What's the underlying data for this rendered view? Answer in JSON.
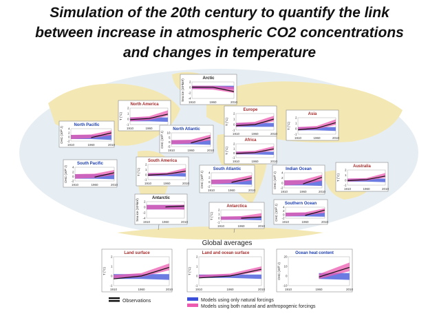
{
  "slide": {
    "title_lines": [
      "Simulation of the 20th century to quantify the link",
      "between increase in atmospheric CO2 concentrations",
      "and changes in temperature"
    ]
  },
  "figure": {
    "global_heading": "Global averages",
    "legend": {
      "observations": "Observations",
      "natural": "Models using only natural forcings",
      "both": "Models using both natural and anthropogenic forcings"
    },
    "colors": {
      "natural": "#3b4fd8",
      "both": "#ec5bb0",
      "observations": "#111111",
      "map": "#f3e7b4",
      "ocean": "#e6eef4"
    }
  },
  "chart_data": [
    {
      "type": "area",
      "title": "Arctic",
      "ylabel": "Sea ice (10⁶km²)",
      "x": [
        1910,
        1960,
        2010
      ],
      "ticks": [
        "2",
        "0",
        "-2",
        "-4"
      ],
      "observations": [
        0.1,
        0.05,
        -1.5
      ],
      "natural": [
        [
          0.6,
          0.6,
          0.6
        ],
        [
          -0.6,
          -0.6,
          -0.6
        ]
      ],
      "both": [
        [
          0.6,
          0.6,
          0.2
        ],
        [
          -0.6,
          -0.8,
          -2.0
        ]
      ],
      "ylim": [
        -4,
        2
      ]
    },
    {
      "type": "area",
      "title": "North America",
      "ylabel": "T (°C)",
      "x": [
        1910,
        1960,
        2010
      ],
      "ticks": [
        "2",
        "1",
        "0",
        "-1"
      ],
      "observations": [
        -0.1,
        0.1,
        0.9
      ],
      "natural": [
        [
          0.3,
          0.3,
          0.3
        ],
        [
          -0.4,
          -0.4,
          -0.5
        ]
      ],
      "both": [
        [
          0.3,
          0.5,
          1.6
        ],
        [
          -0.4,
          -0.2,
          0.6
        ]
      ],
      "ylim": [
        -1,
        2
      ]
    },
    {
      "type": "area",
      "title": "Europe",
      "ylabel": "T (°C)",
      "x": [
        1910,
        1960,
        2010
      ],
      "ticks": [
        "2",
        "1",
        "0",
        "-1"
      ],
      "observations": [
        -0.2,
        0.0,
        1.0
      ],
      "natural": [
        [
          0.3,
          0.3,
          0.3
        ],
        [
          -0.4,
          -0.4,
          -0.4
        ]
      ],
      "both": [
        [
          0.3,
          0.5,
          1.6
        ],
        [
          -0.4,
          -0.1,
          0.6
        ]
      ],
      "ylim": [
        -1,
        2
      ]
    },
    {
      "type": "area",
      "title": "Asia",
      "ylabel": "T (°C)",
      "x": [
        1910,
        1960,
        2010
      ],
      "ticks": [
        "2",
        "1",
        "0",
        "-1"
      ],
      "observations": [
        -0.2,
        0.1,
        1.1
      ],
      "natural": [
        [
          0.3,
          0.3,
          0.3
        ],
        [
          -0.3,
          -0.3,
          -0.4
        ]
      ],
      "both": [
        [
          0.3,
          0.5,
          1.7
        ],
        [
          -0.3,
          -0.1,
          0.7
        ]
      ],
      "ylim": [
        -1,
        2
      ]
    },
    {
      "type": "area",
      "title": "North Pacific",
      "ylabel": "OHC (10²² J)",
      "x": [
        1910,
        1960,
        2010
      ],
      "ticks": [
        "4",
        "2",
        "0",
        "-2"
      ],
      "observations": [
        null,
        -0.3,
        2.0
      ],
      "natural": [
        [
          1.0,
          1.0,
          1.0
        ],
        [
          -1.0,
          -1.0,
          -1.4
        ]
      ],
      "both": [
        [
          1.0,
          1.2,
          3.2
        ],
        [
          -1.0,
          -0.6,
          0.8
        ]
      ],
      "ylim": [
        -2,
        4
      ]
    },
    {
      "type": "area",
      "title": "North Atlantic",
      "ylabel": "OHC (10²² J)",
      "x": [
        1910,
        1960,
        2010
      ],
      "ticks": [
        "10",
        "5",
        "0",
        "-5"
      ],
      "observations": [
        null,
        -1.0,
        5.0
      ],
      "natural": [
        [
          2.0,
          2.0,
          2.0
        ],
        [
          -2.5,
          -2.5,
          -3.0
        ]
      ],
      "both": [
        [
          2.0,
          2.5,
          8.0
        ],
        [
          -2.5,
          -1.5,
          2.0
        ]
      ],
      "ylim": [
        -5,
        10
      ]
    },
    {
      "type": "area",
      "title": "Africa",
      "ylabel": "T (°C)",
      "x": [
        1910,
        1960,
        2010
      ],
      "ticks": [
        "2",
        "1",
        "0",
        "-1"
      ],
      "observations": [
        -0.1,
        0.1,
        0.9
      ],
      "natural": [
        [
          0.3,
          0.3,
          0.3
        ],
        [
          -0.3,
          -0.3,
          -0.4
        ]
      ],
      "both": [
        [
          0.3,
          0.5,
          1.5
        ],
        [
          -0.3,
          -0.1,
          0.6
        ]
      ],
      "ylim": [
        -1,
        2
      ]
    },
    {
      "type": "area",
      "title": "South Pacific",
      "ylabel": "OHC (10²² J)",
      "x": [
        1910,
        1960,
        2010
      ],
      "ticks": [
        "4",
        "2",
        "0",
        "-2"
      ],
      "observations": [
        null,
        -0.3,
        1.6
      ],
      "natural": [
        [
          1.0,
          1.0,
          1.0
        ],
        [
          -1.0,
          -1.0,
          -1.2
        ]
      ],
      "both": [
        [
          1.0,
          1.2,
          2.8
        ],
        [
          -1.0,
          -0.6,
          0.6
        ]
      ],
      "ylim": [
        -2,
        4
      ]
    },
    {
      "type": "area",
      "title": "South America",
      "ylabel": "T (°C)",
      "x": [
        1910,
        1960,
        2010
      ],
      "ticks": [
        "2",
        "1",
        "0",
        "-1"
      ],
      "observations": [
        -0.1,
        0.1,
        0.7
      ],
      "natural": [
        [
          0.3,
          0.3,
          0.3
        ],
        [
          -0.3,
          -0.3,
          -0.4
        ]
      ],
      "both": [
        [
          0.3,
          0.4,
          1.3
        ],
        [
          -0.3,
          -0.1,
          0.4
        ]
      ],
      "ylim": [
        -1,
        2
      ]
    },
    {
      "type": "area",
      "title": "South Atlantic",
      "ylabel": "OHC (10²² J)",
      "x": [
        1910,
        1960,
        2010
      ],
      "ticks": [
        "4",
        "2",
        "0",
        "-2"
      ],
      "observations": [
        null,
        -0.2,
        1.8
      ],
      "natural": [
        [
          1.0,
          1.0,
          1.0
        ],
        [
          -1.0,
          -1.0,
          -1.2
        ]
      ],
      "both": [
        [
          1.0,
          1.2,
          3.0
        ],
        [
          -1.0,
          -0.5,
          0.7
        ]
      ],
      "ylim": [
        -2,
        4
      ]
    },
    {
      "type": "area",
      "title": "Indian Ocean",
      "ylabel": "OHC (10²² J)",
      "x": [
        1910,
        1960,
        2010
      ],
      "ticks": [
        "4",
        "2",
        "0",
        "-2"
      ],
      "observations": [
        null,
        -0.4,
        2.2
      ],
      "natural": [
        [
          1.0,
          1.0,
          1.0
        ],
        [
          -1.0,
          -1.0,
          -1.2
        ]
      ],
      "both": [
        [
          1.0,
          1.2,
          3.2
        ],
        [
          -1.0,
          -0.6,
          0.8
        ]
      ],
      "ylim": [
        -2,
        4
      ]
    },
    {
      "type": "area",
      "title": "Australia",
      "ylabel": "T (°C)",
      "x": [
        1910,
        1960,
        2010
      ],
      "ticks": [
        "2",
        "1",
        "0",
        "-1"
      ],
      "observations": [
        -0.1,
        0.1,
        0.8
      ],
      "natural": [
        [
          0.3,
          0.3,
          0.3
        ],
        [
          -0.3,
          -0.3,
          -0.4
        ]
      ],
      "both": [
        [
          0.3,
          0.4,
          1.4
        ],
        [
          -0.3,
          -0.1,
          0.5
        ]
      ],
      "ylim": [
        -1,
        2
      ]
    },
    {
      "type": "area",
      "title": "Antarctic",
      "ylabel": "Sea ice (10⁶km²)",
      "x": [
        1910,
        1960,
        2010
      ],
      "ticks": [
        "2",
        "0",
        "-2",
        "-4"
      ],
      "observations": [
        null,
        0.1,
        0.4
      ],
      "natural": [
        [
          0.8,
          0.8,
          0.8
        ],
        [
          -0.8,
          -0.8,
          -0.8
        ]
      ],
      "both": [
        [
          0.8,
          0.8,
          0.9
        ],
        [
          -0.8,
          -0.8,
          -0.9
        ]
      ],
      "ylim": [
        -4,
        2
      ]
    },
    {
      "type": "area",
      "title": "Antarctica",
      "ylabel": "T (°C)",
      "x": [
        1910,
        1960,
        2010
      ],
      "ticks": [
        "2",
        "1",
        "0",
        "-1"
      ],
      "observations": [
        null,
        0.0,
        0.3
      ],
      "natural": [
        [
          0.4,
          0.4,
          0.4
        ],
        [
          -0.4,
          -0.4,
          -0.5
        ]
      ],
      "both": [
        [
          0.4,
          0.5,
          1.2
        ],
        [
          -0.4,
          -0.3,
          0.2
        ]
      ],
      "ylim": [
        -1,
        2
      ]
    },
    {
      "type": "area",
      "title": "Southern Ocean",
      "ylabel": "OHC (10²² J)",
      "x": [
        1910,
        1960,
        2010
      ],
      "ticks": [
        "4",
        "2",
        "0",
        "-2"
      ],
      "observations": [
        null,
        -0.5,
        2.4
      ],
      "natural": [
        [
          1.0,
          1.0,
          1.0
        ],
        [
          -1.0,
          -1.0,
          -1.2
        ]
      ],
      "both": [
        [
          1.0,
          1.2,
          3.4
        ],
        [
          -1.0,
          -0.6,
          0.9
        ]
      ],
      "ylim": [
        -2,
        4
      ]
    },
    {
      "type": "area",
      "title": "Land surface",
      "ylabel": "T (°C)",
      "x": [
        1910,
        1960,
        2010
      ],
      "ticks": [
        "2",
        "1",
        "0",
        "-1"
      ],
      "observations": [
        -0.3,
        0.0,
        0.9
      ],
      "natural": [
        [
          0.2,
          0.2,
          0.2
        ],
        [
          -0.3,
          -0.3,
          -0.4
        ]
      ],
      "both": [
        [
          0.1,
          0.3,
          1.3
        ],
        [
          -0.3,
          -0.1,
          0.6
        ]
      ],
      "ylim": [
        -1,
        2
      ]
    },
    {
      "type": "area",
      "title": "Land and ocean surface",
      "ylabel": "T (°C)",
      "x": [
        1910,
        1960,
        2010
      ],
      "ticks": [
        "2",
        "1",
        "0",
        "-1"
      ],
      "observations": [
        -0.2,
        0.0,
        0.7
      ],
      "natural": [
        [
          0.15,
          0.15,
          0.15
        ],
        [
          -0.2,
          -0.2,
          -0.3
        ]
      ],
      "both": [
        [
          0.1,
          0.25,
          1.0
        ],
        [
          -0.2,
          -0.05,
          0.5
        ]
      ],
      "ylim": [
        -1,
        2
      ]
    },
    {
      "type": "area",
      "title": "Ocean heat content",
      "ylabel": "OHC (10²² J)",
      "x": [
        1910,
        1960,
        2010
      ],
      "ticks": [
        "20",
        "10",
        "0",
        "-10"
      ],
      "observations": [
        null,
        -1.0,
        9.0
      ],
      "natural": [
        [
          null,
          3.0,
          3.0
        ],
        [
          null,
          -3.0,
          -4.0
        ]
      ],
      "both": [
        [
          null,
          2.0,
          14.0
        ],
        [
          null,
          -3.0,
          5.0
        ]
      ],
      "ylim": [
        -10,
        20
      ]
    }
  ]
}
